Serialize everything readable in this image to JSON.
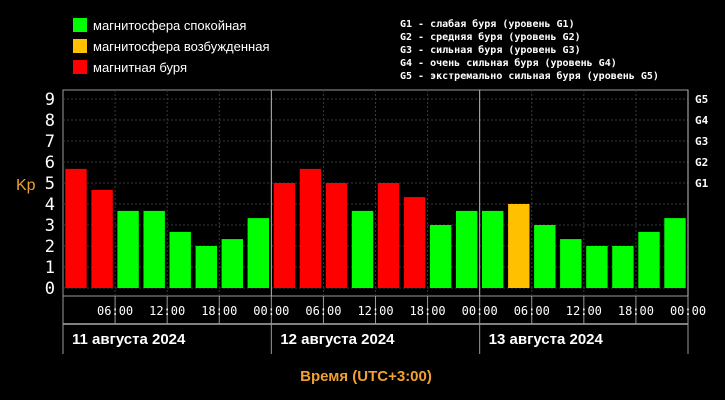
{
  "legend": {
    "items": [
      {
        "label": "магнитосфера спокойная",
        "color": "#00ff00"
      },
      {
        "label": "магнитосфера возбужденная",
        "color": "#ffc000"
      },
      {
        "label": "магнитная буря",
        "color": "#ff0000"
      }
    ],
    "g_scale": [
      "G1 - слабая буря (уровень G1)",
      "G2 - средняя буря (уровень G2)",
      "G3 - сильная буря (уровень G3)",
      "G4 - очень сильная буря (уровень G4)",
      "G5 - экстремально сильная буря (уровень G5)"
    ]
  },
  "chart_data": {
    "type": "bar",
    "ylabel": "Kp",
    "xlabel": "Время (UTC+3:00)",
    "ylim": [
      0,
      9
    ],
    "y_ticks": [
      "0",
      "1",
      "2",
      "3",
      "4",
      "5",
      "6",
      "7",
      "8",
      "9"
    ],
    "g_ticks": [
      {
        "label": "G1",
        "value": 5
      },
      {
        "label": "G2",
        "value": 6
      },
      {
        "label": "G3",
        "value": 7
      },
      {
        "label": "G4",
        "value": 8
      },
      {
        "label": "G5",
        "value": 9
      }
    ],
    "x_tick_labels": [
      "06:00",
      "12:00",
      "18:00",
      "00:00",
      "06:00",
      "12:00",
      "18:00",
      "00:00",
      "06:00",
      "12:00",
      "18:00",
      "00:00"
    ],
    "days": [
      "11 августа 2024",
      "12 августа 2024",
      "13 августа 2024"
    ],
    "values": [
      5.67,
      4.67,
      3.67,
      3.67,
      2.67,
      2.0,
      2.33,
      3.33,
      5.0,
      5.67,
      5.0,
      3.67,
      5.0,
      4.33,
      3.0,
      3.67,
      3.67,
      4.0,
      3.0,
      2.33,
      2.0,
      2.0,
      2.67,
      3.33
    ],
    "colors": [
      "#ff0000",
      "#ff0000",
      "#00ff00",
      "#00ff00",
      "#00ff00",
      "#00ff00",
      "#00ff00",
      "#00ff00",
      "#ff0000",
      "#ff0000",
      "#ff0000",
      "#00ff00",
      "#ff0000",
      "#ff0000",
      "#00ff00",
      "#00ff00",
      "#00ff00",
      "#ffc000",
      "#00ff00",
      "#00ff00",
      "#00ff00",
      "#00ff00",
      "#00ff00",
      "#00ff00"
    ],
    "grid": true
  }
}
